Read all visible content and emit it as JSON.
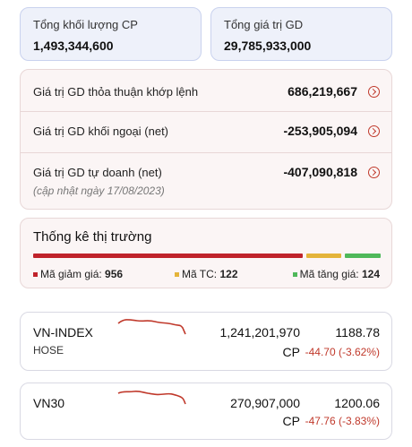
{
  "summary": {
    "volume_label": "Tổng khối lượng CP",
    "volume_value": "1,493,344,600",
    "value_label": "Tổng giá trị GD",
    "value_value": "29,785,933,000"
  },
  "trade_values": {
    "rows": [
      {
        "label": "Giá trị GD thỏa thuận khớp lệnh",
        "value": "686,219,667"
      },
      {
        "label": "Giá trị GD khối ngoại (net)",
        "value": "-253,905,094"
      },
      {
        "label": "Giá trị GD tự doanh (net)",
        "value": "-407,090,818"
      }
    ],
    "updated_note": "(cập nhật ngày 17/08/2023)"
  },
  "market_stats": {
    "title": "Thống kê thị trường",
    "decline_label": "Mã giảm giá:",
    "decline_count": "956",
    "unchanged_label": "Mã TC:",
    "unchanged_count": "122",
    "advance_label": "Mã tăng giá:",
    "advance_count": "124",
    "colors": {
      "decline": "#c0232b",
      "unchanged": "#e4b43a",
      "advance": "#4fb85a"
    }
  },
  "indices": [
    {
      "name": "VN-INDEX",
      "exchange": "HOSE",
      "volume": "1,241,201,970",
      "unit": "CP",
      "point": "1188.78",
      "change": "-44.70 (-3.62%)"
    },
    {
      "name": "VN30",
      "exchange": "",
      "volume": "270,907,000",
      "unit": "CP",
      "point": "1200.06",
      "change": "-47.76 (-3.83%)"
    }
  ]
}
